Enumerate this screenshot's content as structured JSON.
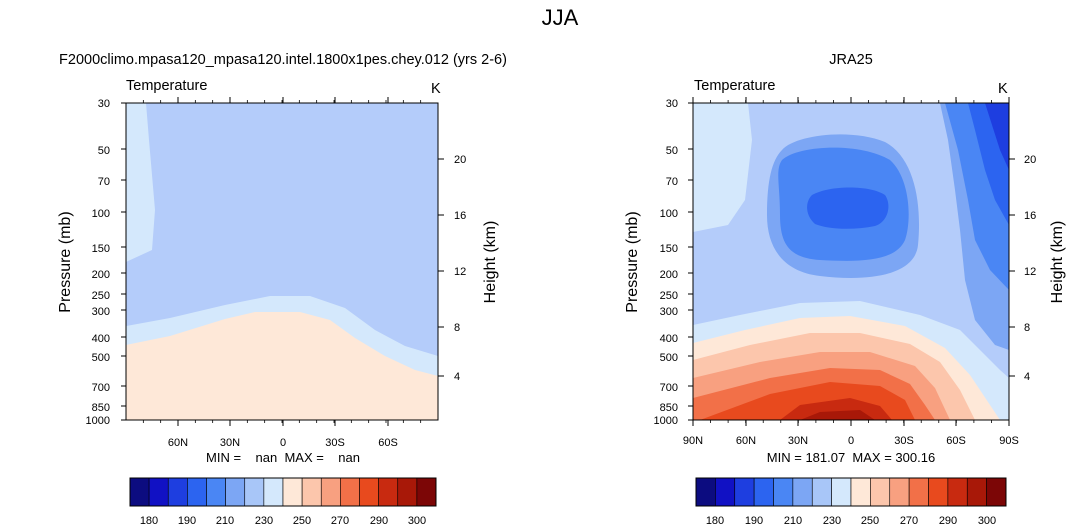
{
  "figure": {
    "title": "JJA"
  },
  "colorbar": {
    "colors": [
      "#0c0c80",
      "#1111c4",
      "#1e3ee0",
      "#2c64f0",
      "#4a86f4",
      "#7ca6f4",
      "#a8c6f8",
      "#d4e8fc",
      "#fee8d8",
      "#fcc6ac",
      "#f8a080",
      "#f27048",
      "#e84a1e",
      "#c82a10",
      "#a81808",
      "#7c0606"
    ],
    "labels": [
      "180",
      "190",
      "210",
      "230",
      "250",
      "270",
      "290",
      "300"
    ]
  },
  "chart_data": [
    {
      "type": "contour",
      "title": "F2000climo.mpasa120_mpasa120.intel.1800x1pes.chey.012 (yrs 2-6)",
      "field_label": "Temperature",
      "units": "K",
      "ylabel": "Pressure (mb)",
      "ylabel_right": "Height (km)",
      "pressure_ticks": [
        "30",
        "50",
        "70",
        "100",
        "150",
        "200",
        "250",
        "300",
        "400",
        "500",
        "700",
        "850",
        "1000"
      ],
      "height_ticks": [
        "20",
        "16",
        "12",
        "8",
        "4"
      ],
      "x_ticks": [
        "60N",
        "30N",
        "0",
        "30S",
        "60S"
      ],
      "stats": {
        "min": "nan",
        "max": "nan"
      },
      "stats_text": "MIN =    nan  MAX =    nan"
    },
    {
      "type": "contour",
      "title": "JRA25",
      "field_label": "Temperature",
      "units": "K",
      "ylabel": "Pressure (mb)",
      "ylabel_right": "Height (km)",
      "pressure_ticks": [
        "30",
        "50",
        "70",
        "100",
        "150",
        "200",
        "250",
        "300",
        "400",
        "500",
        "700",
        "850",
        "1000"
      ],
      "height_ticks": [
        "20",
        "16",
        "12",
        "8",
        "4"
      ],
      "x_ticks": [
        "90N",
        "60N",
        "30N",
        "0",
        "30S",
        "60S",
        "90S"
      ],
      "stats": {
        "min": 181.07,
        "max": 300.16
      },
      "stats_text": "MIN = 181.07  MAX = 300.16"
    }
  ]
}
